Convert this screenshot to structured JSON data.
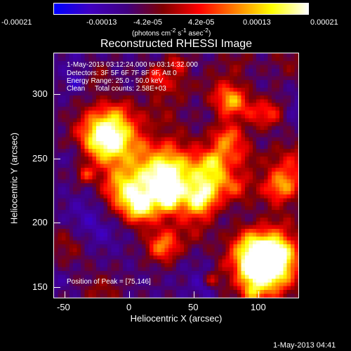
{
  "colorbar": {
    "ticks": [
      "-0.00021",
      "-0.00013",
      "-4.2e-05",
      "4.2e-05",
      "0.00013",
      "0.00021"
    ],
    "units_html": "(photons cm<sup>-2</sup> s<sup>-1</sup> asec<sup>-2</sup>)"
  },
  "title": "Reconstructed RHESSI Image",
  "annotations": {
    "time_range": "1-May-2013 03:12:24.000 to 03:14:32.000",
    "detectors": "Detectors: 3F 5F 6F 7F 8F 9F, Att 0",
    "energy_range": "Energy Range: 25.0 - 50.0 keV",
    "clean_counts": "Clean     Total counts: 2.58E+03",
    "peak_position": "Position of Peak = [75,146]"
  },
  "axes": {
    "xlabel": "Heliocentric X (arcsec)",
    "ylabel": "Heliocentric Y (arcsec)",
    "xticks": [
      "-50",
      "0",
      "50",
      "100"
    ],
    "yticks": [
      "150",
      "200",
      "250",
      "300"
    ]
  },
  "footer_timestamp": "1-May-2013 04:41",
  "colors": {
    "colormap": [
      "#0000ff",
      "#4000c0",
      "#400080",
      "#800000",
      "#ff0000",
      "#ff8000",
      "#ffff00",
      "#ffffff"
    ]
  }
}
